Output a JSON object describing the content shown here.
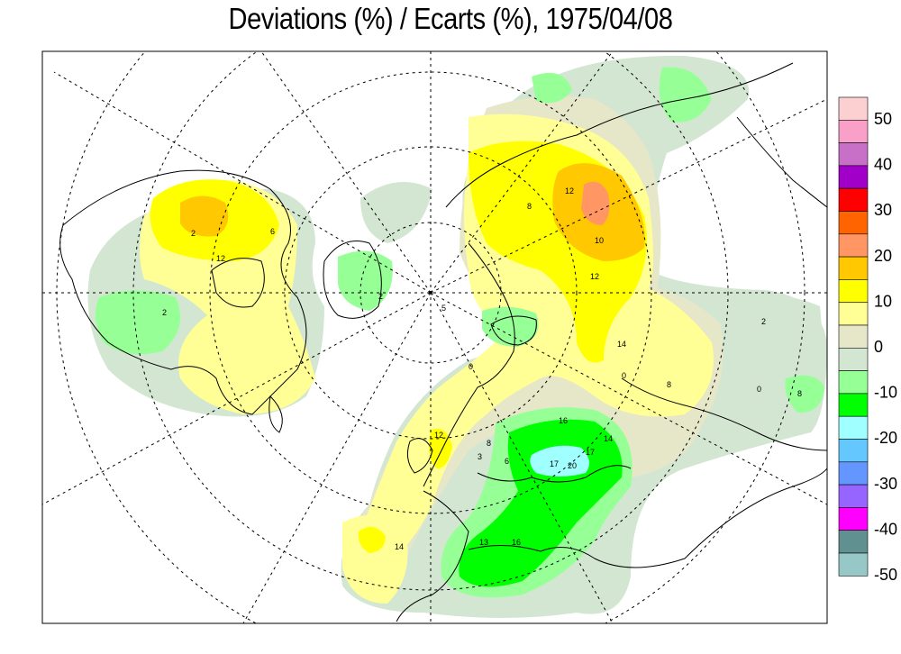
{
  "title": "Deviations (%) / Ecarts (%), 1975/04/08",
  "legend": {
    "bins": [
      {
        "color": "#fcd0d0"
      },
      {
        "color": "#f8a0c8"
      },
      {
        "color": "#c870c8"
      },
      {
        "color": "#a000c8"
      },
      {
        "color": "#ff0000"
      },
      {
        "color": "#ff6400"
      },
      {
        "color": "#ff9664"
      },
      {
        "color": "#ffc800"
      },
      {
        "color": "#ffff00"
      },
      {
        "color": "#ffff96"
      },
      {
        "color": "#e6e6c8"
      },
      {
        "color": "#d2e6d2"
      },
      {
        "color": "#96ff96"
      },
      {
        "color": "#00ff00"
      },
      {
        "color": "#a0ffff"
      },
      {
        "color": "#64c8ff"
      },
      {
        "color": "#6496ff"
      },
      {
        "color": "#9664ff"
      },
      {
        "color": "#ff00ff"
      },
      {
        "color": "#609090"
      },
      {
        "color": "#96c8c8"
      }
    ],
    "labels": [
      "50",
      "40",
      "30",
      "20",
      "10",
      "0",
      "-10",
      "-20",
      "-30",
      "-40",
      "-50"
    ]
  },
  "contour_labels": [
    "12",
    "8",
    "10",
    "12",
    "2",
    "6",
    "12",
    "14",
    "0",
    "2",
    "8",
    "0",
    "8",
    "2",
    "12",
    "14",
    "13",
    "16",
    "17",
    "20",
    "17",
    "16",
    "14",
    "8",
    "6",
    "3",
    "5",
    "2",
    "0"
  ]
}
